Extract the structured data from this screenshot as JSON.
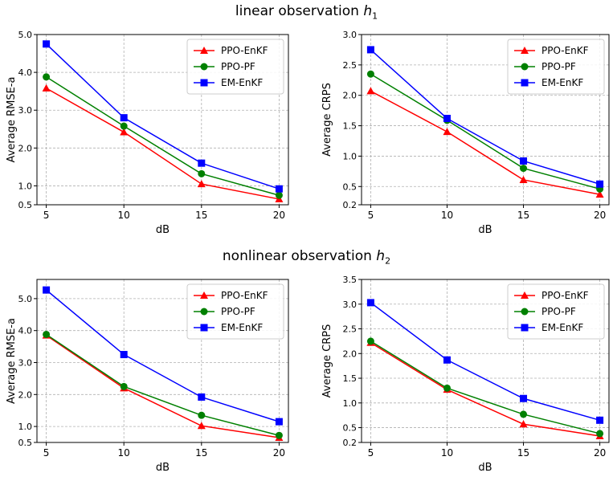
{
  "figure": {
    "row_titles": [
      {
        "label": "linear observation",
        "symbol": "h",
        "subscript": "1"
      },
      {
        "label": "nonlinear observation",
        "symbol": "h",
        "subscript": "2"
      }
    ]
  },
  "chart_data": [
    {
      "type": "line",
      "title": "",
      "row": "linear observation h1",
      "xlabel": "dB",
      "ylabel": "Average RMSE-a",
      "x": [
        5,
        10,
        15,
        20
      ],
      "xticks": [
        5,
        10,
        15,
        20
      ],
      "xtick_labels": [
        "5",
        "10",
        "15",
        "20"
      ],
      "ylim": [
        0.5,
        5.0
      ],
      "yticks": [
        0.5,
        1.0,
        2.0,
        3.0,
        4.0,
        5.0
      ],
      "ytick_labels": [
        "0.5",
        "1.0",
        "2.0",
        "3.0",
        "4.0",
        "5.0"
      ],
      "grid": true,
      "legend": "top-right",
      "series": [
        {
          "name": "PPO-EnKF",
          "values": [
            3.58,
            2.42,
            1.05,
            0.65
          ],
          "color": "#ff0000",
          "marker": "triangle"
        },
        {
          "name": "PPO-PF",
          "values": [
            3.88,
            2.58,
            1.32,
            0.75
          ],
          "color": "#008000",
          "marker": "circle"
        },
        {
          "name": "EM-EnKF",
          "values": [
            4.75,
            2.8,
            1.6,
            0.92
          ],
          "color": "#0000ff",
          "marker": "square"
        }
      ]
    },
    {
      "type": "line",
      "title": "",
      "row": "linear observation h1",
      "xlabel": "dB",
      "ylabel": "Average CRPS",
      "x": [
        5,
        10,
        15,
        20
      ],
      "xticks": [
        5,
        10,
        15,
        20
      ],
      "xtick_labels": [
        "5",
        "10",
        "15",
        "20"
      ],
      "ylim": [
        0.2,
        3.0
      ],
      "yticks": [
        0.2,
        0.5,
        1.0,
        1.5,
        2.0,
        2.5,
        3.0
      ],
      "ytick_labels": [
        "0.2",
        "0.5",
        "1.0",
        "1.5",
        "2.0",
        "2.5",
        "3.0"
      ],
      "grid": true,
      "legend": "top-right",
      "series": [
        {
          "name": "PPO-EnKF",
          "values": [
            2.07,
            1.4,
            0.61,
            0.37
          ],
          "color": "#ff0000",
          "marker": "triangle"
        },
        {
          "name": "PPO-PF",
          "values": [
            2.35,
            1.59,
            0.8,
            0.46
          ],
          "color": "#008000",
          "marker": "circle"
        },
        {
          "name": "EM-EnKF",
          "values": [
            2.75,
            1.62,
            0.92,
            0.54
          ],
          "color": "#0000ff",
          "marker": "square"
        }
      ]
    },
    {
      "type": "line",
      "title": "",
      "row": "nonlinear observation h2",
      "xlabel": "dB",
      "ylabel": "Average RMSE-a",
      "x": [
        5,
        10,
        15,
        20
      ],
      "xticks": [
        5,
        10,
        15,
        20
      ],
      "xtick_labels": [
        "5",
        "10",
        "15",
        "20"
      ],
      "ylim": [
        0.5,
        5.6
      ],
      "yticks": [
        0.5,
        1.0,
        2.0,
        3.0,
        4.0,
        5.0
      ],
      "ytick_labels": [
        "0.5",
        "1.0",
        "2.0",
        "3.0",
        "4.0",
        "5.0"
      ],
      "grid": true,
      "legend": "top-right",
      "series": [
        {
          "name": "PPO-EnKF",
          "values": [
            3.85,
            2.2,
            1.02,
            0.65
          ],
          "color": "#ff0000",
          "marker": "triangle"
        },
        {
          "name": "PPO-PF",
          "values": [
            3.88,
            2.25,
            1.35,
            0.72
          ],
          "color": "#008000",
          "marker": "circle"
        },
        {
          "name": "EM-EnKF",
          "values": [
            5.27,
            3.25,
            1.92,
            1.15
          ],
          "color": "#0000ff",
          "marker": "square"
        }
      ]
    },
    {
      "type": "line",
      "title": "",
      "row": "nonlinear observation h2",
      "xlabel": "dB",
      "ylabel": "Average CRPS",
      "x": [
        5,
        10,
        15,
        20
      ],
      "xticks": [
        5,
        10,
        15,
        20
      ],
      "xtick_labels": [
        "5",
        "10",
        "15",
        "20"
      ],
      "ylim": [
        0.2,
        3.5
      ],
      "yticks": [
        0.2,
        0.5,
        1.0,
        1.5,
        2.0,
        2.5,
        3.0,
        3.5
      ],
      "ytick_labels": [
        "0.2",
        "0.5",
        "1.0",
        "1.5",
        "2.0",
        "2.5",
        "3.0",
        "3.5"
      ],
      "grid": true,
      "legend": "top-right",
      "series": [
        {
          "name": "PPO-EnKF",
          "values": [
            2.22,
            1.27,
            0.57,
            0.33
          ],
          "color": "#ff0000",
          "marker": "triangle"
        },
        {
          "name": "PPO-PF",
          "values": [
            2.25,
            1.3,
            0.77,
            0.38
          ],
          "color": "#008000",
          "marker": "circle"
        },
        {
          "name": "EM-EnKF",
          "values": [
            3.03,
            1.87,
            1.09,
            0.65
          ],
          "color": "#0000ff",
          "marker": "square"
        }
      ]
    }
  ]
}
